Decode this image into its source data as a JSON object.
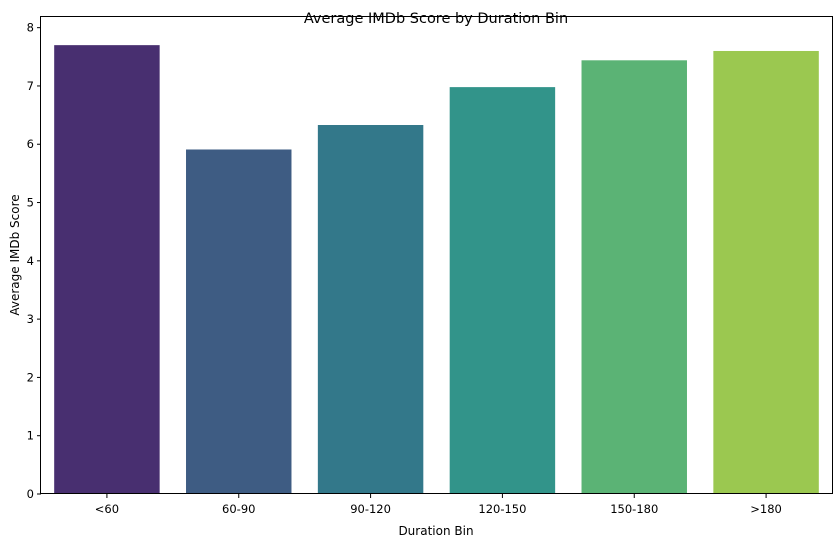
{
  "chart_data": {
    "type": "bar",
    "title": "Average IMDb Score by Duration Bin",
    "xlabel": "Duration Bin",
    "ylabel": "Average IMDb Score",
    "categories": [
      "<60",
      "60-90",
      "90-120",
      "120-150",
      "150-180",
      ">180"
    ],
    "values": [
      7.7,
      5.91,
      6.33,
      6.98,
      7.44,
      7.6
    ],
    "colors": [
      "#482f70",
      "#3e5c83",
      "#33788a",
      "#32948a",
      "#5bb375",
      "#9bc850"
    ],
    "ylim": [
      0,
      8.2
    ],
    "yticks": [
      0,
      1,
      2,
      3,
      4,
      5,
      6,
      7,
      8
    ],
    "grid": false,
    "legend": "none"
  }
}
